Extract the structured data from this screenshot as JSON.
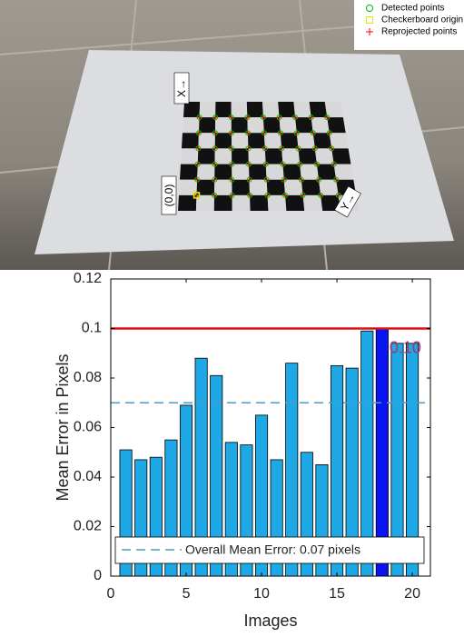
{
  "image": {
    "legend": [
      {
        "label": "Detected points",
        "color": "#00c000"
      },
      {
        "label": "Checkerboard origin",
        "color": "#e6e600"
      },
      {
        "label": "Reprojected points",
        "color": "#ff0000"
      }
    ],
    "x_axis_label": "X→",
    "origin_label": "(0,0)",
    "y_axis_label": "Y→"
  },
  "chart_data": {
    "type": "bar",
    "xlabel": "Images",
    "ylabel": "Mean Error in Pixels",
    "x": [
      1,
      2,
      3,
      4,
      5,
      6,
      7,
      8,
      9,
      10,
      11,
      12,
      13,
      14,
      15,
      16,
      17,
      18,
      19,
      20
    ],
    "values": [
      0.051,
      0.047,
      0.048,
      0.055,
      0.069,
      0.088,
      0.081,
      0.054,
      0.053,
      0.065,
      0.047,
      0.086,
      0.05,
      0.045,
      0.085,
      0.084,
      0.099,
      0.1,
      0.094,
      0.094
    ],
    "color": "#1ea8e6",
    "highlight_x": 18,
    "highlight_color": "#0a14f0",
    "max_line": 0.1,
    "max_line_color": "#e01010",
    "max_label": "0.10",
    "mean_line": 0.07,
    "mean_line_color": "#4a9dc8",
    "mean_legend": "Overall Mean Error: 0.07 pixels",
    "xlim": [
      0,
      21.2
    ],
    "xticks": [
      0,
      5,
      10,
      15,
      20
    ],
    "ylim": [
      0,
      0.12
    ],
    "yticks": [
      0,
      0.02,
      0.04,
      0.06,
      0.08,
      0.1,
      0.12
    ]
  }
}
